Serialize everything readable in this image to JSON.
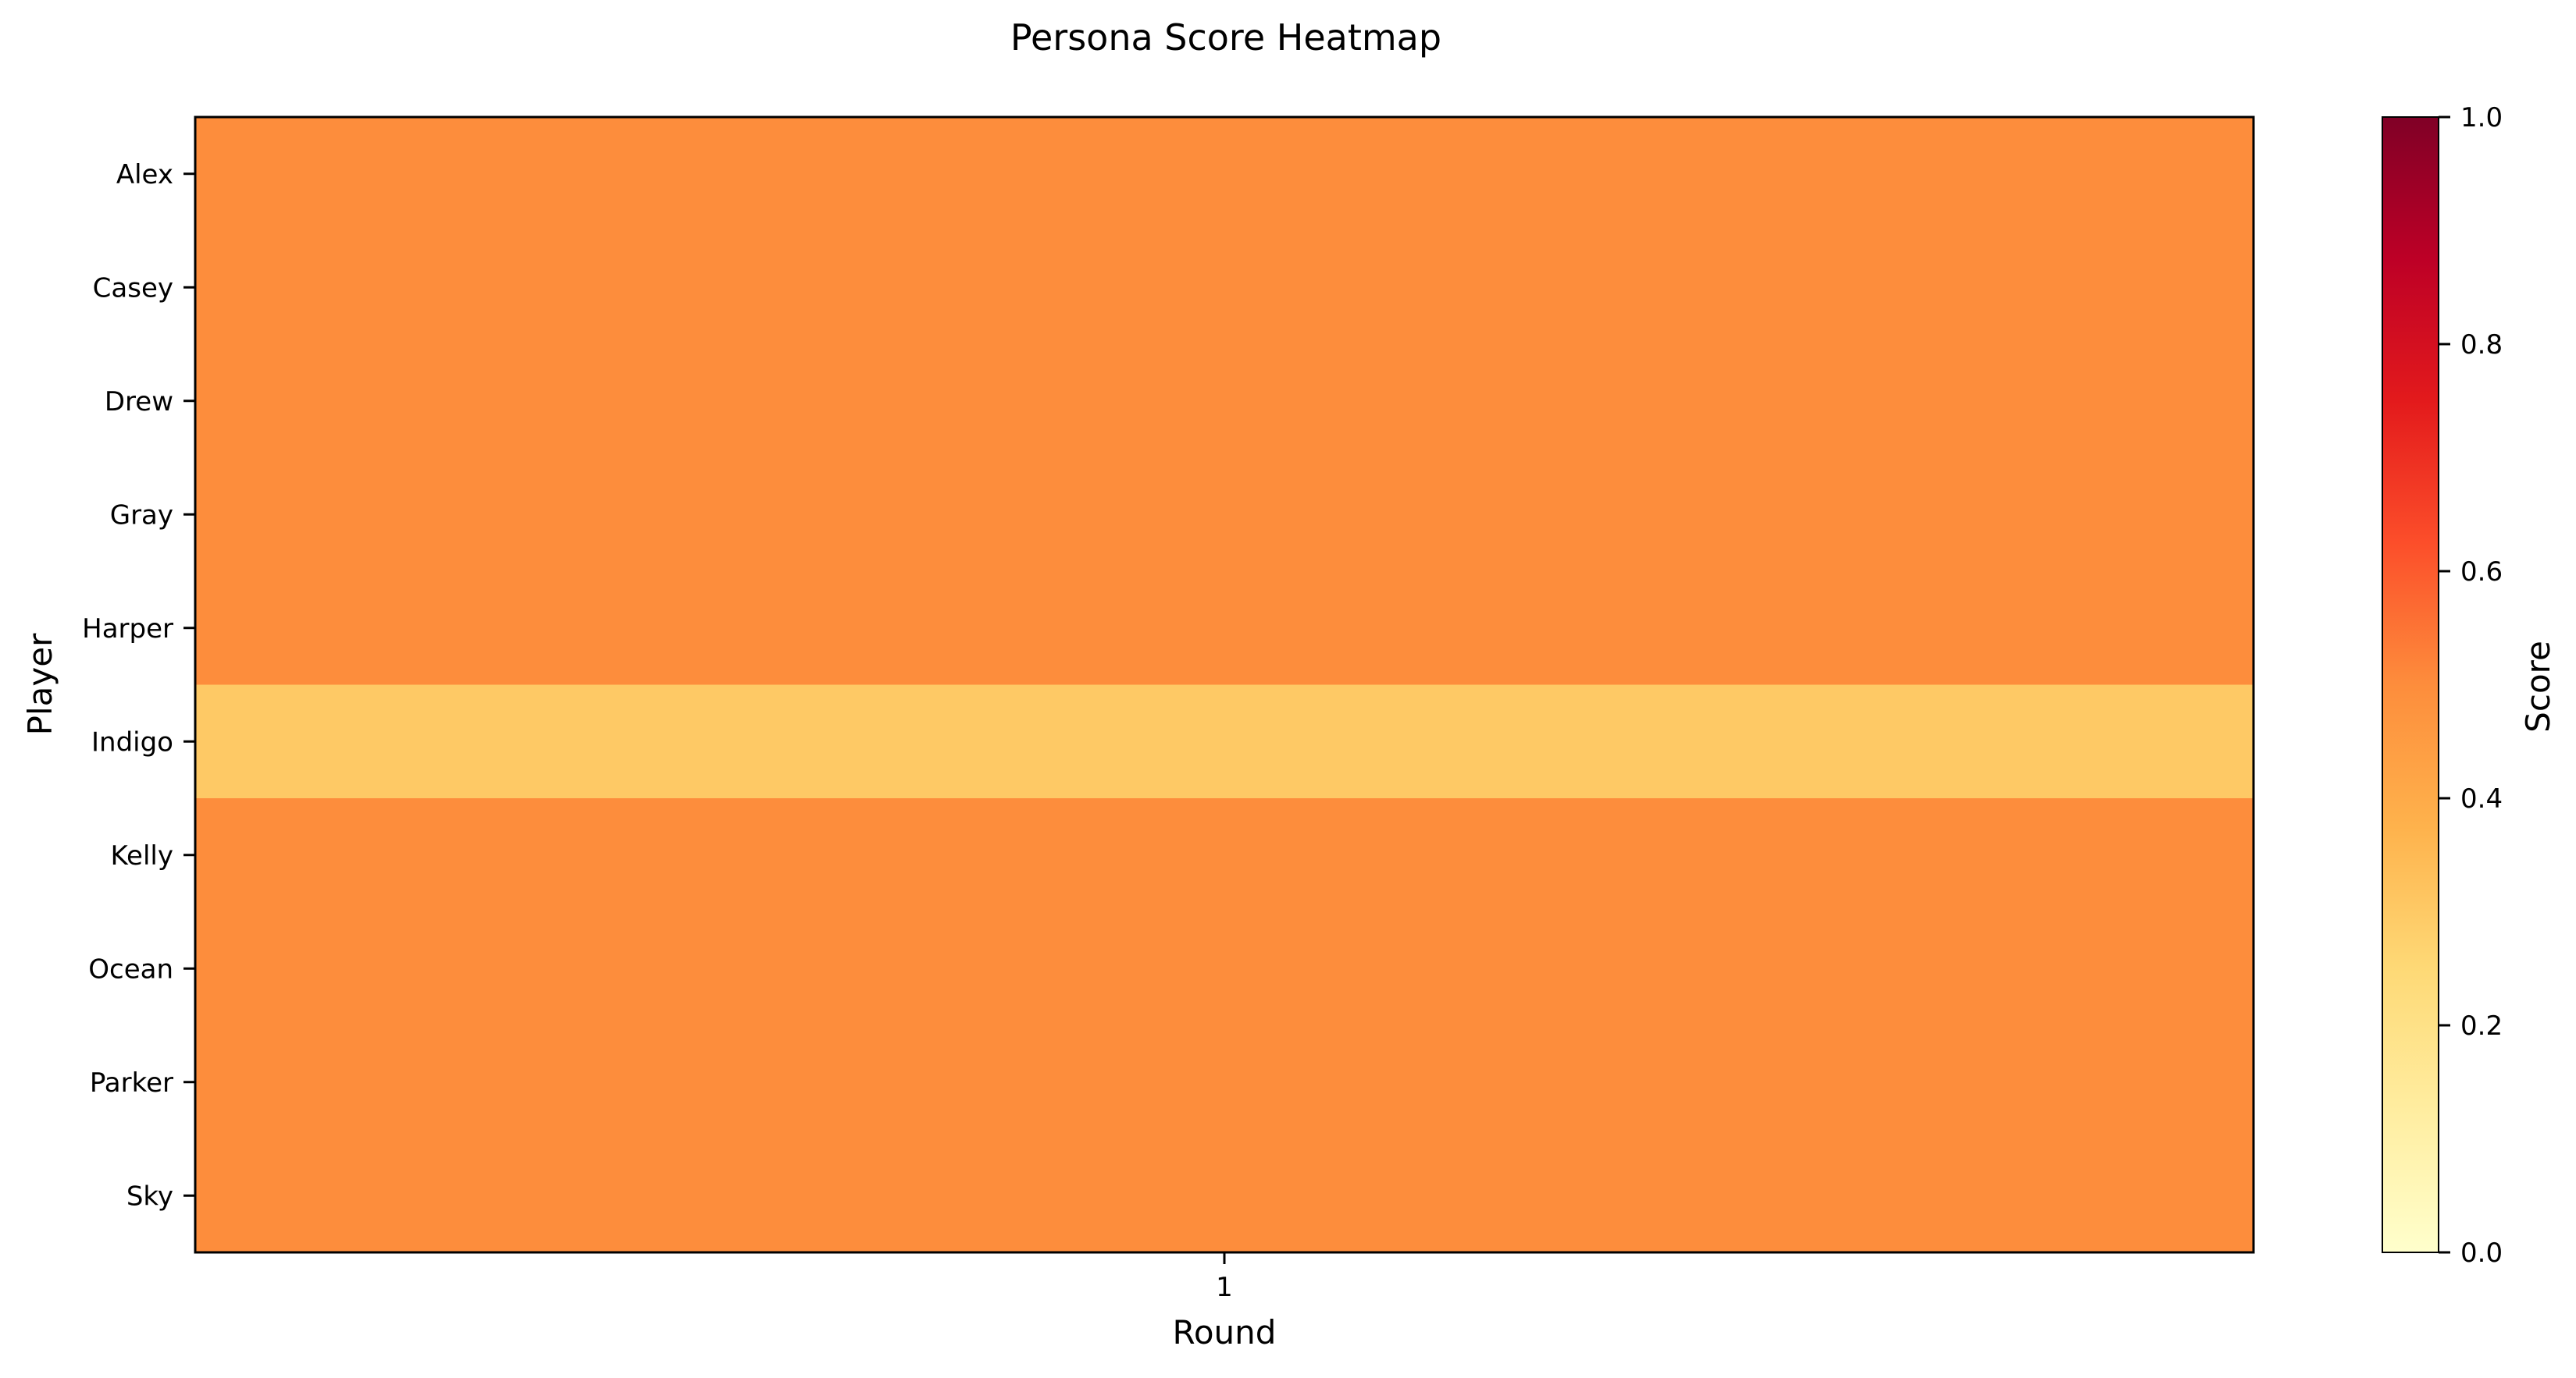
{
  "chart_data": {
    "type": "heatmap",
    "title": "Persona Score Heatmap",
    "xlabel": "Round",
    "ylabel": "Player",
    "x_categories": [
      "1"
    ],
    "y_categories": [
      "Alex",
      "Casey",
      "Drew",
      "Gray",
      "Harper",
      "Indigo",
      "Kelly",
      "Ocean",
      "Parker",
      "Sky"
    ],
    "values": [
      [
        0.5
      ],
      [
        0.5
      ],
      [
        0.5
      ],
      [
        0.5
      ],
      [
        0.5
      ],
      [
        0.3
      ],
      [
        0.5
      ],
      [
        0.5
      ],
      [
        0.5
      ],
      [
        0.5
      ]
    ],
    "colormap": "YlOrRd",
    "colorbar": {
      "label": "Score",
      "range": [
        0,
        1
      ],
      "ticks": [
        "0.0",
        "0.2",
        "0.4",
        "0.6",
        "0.8",
        "1.0"
      ]
    },
    "grid": false,
    "legend": "colorbar-right"
  }
}
